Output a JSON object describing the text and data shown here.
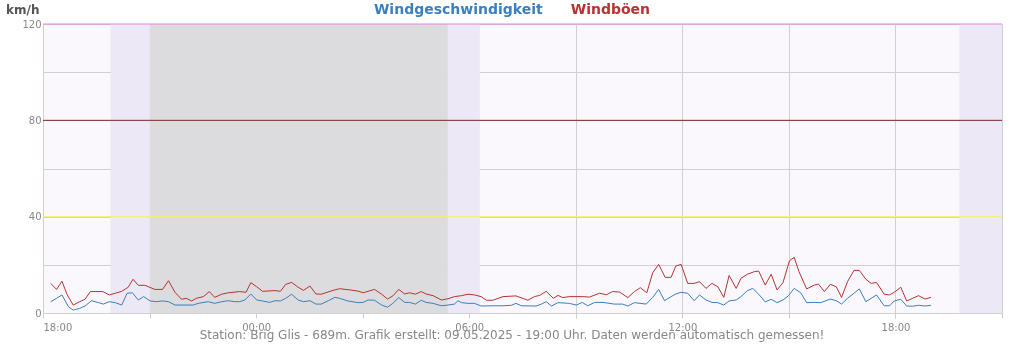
{
  "chart_data": {
    "type": "line",
    "ylabel": "km/h",
    "xlim": [
      "2025-05-08T18:00",
      "2025-05-09T21:00"
    ],
    "ylim": [
      0,
      120
    ],
    "xticks": [
      {
        "value": "2025-05-08T18:00",
        "label": "18:00"
      },
      {
        "value": "2025-05-08T21:00",
        "label": null
      },
      {
        "value": "2025-05-09T00:00",
        "label": "00:00"
      },
      {
        "value": "2025-05-09T03:00",
        "label": null
      },
      {
        "value": "2025-05-09T06:00",
        "label": "06:00"
      },
      {
        "value": "2025-05-09T09:00",
        "label": null
      },
      {
        "value": "2025-05-09T12:00",
        "label": "12:00"
      },
      {
        "value": "2025-05-09T15:00",
        "label": null
      },
      {
        "value": "2025-05-09T18:00",
        "label": "18:00"
      },
      {
        "value": "2025-05-09T21:00",
        "label": null
      }
    ],
    "yticks": [
      0,
      {
        "value": 20,
        "label": null
      },
      40,
      {
        "value": 60,
        "label": null
      },
      80,
      {
        "value": 100,
        "label": null
      },
      120
    ],
    "grid": true,
    "legend": "top",
    "line_style": "solid",
    "annotations": [
      "Station: Brig Glis - 689m. Grafik erstellt: 09.05.2025 - 19:00 Uhr. Daten werden automatisch gemessen!"
    ],
    "bands": [
      {
        "axis": "x",
        "from": "2025-05-08T19:54",
        "to": "2025-05-08T21:00",
        "color": "#ece8f6"
      },
      {
        "axis": "x",
        "from": "2025-05-08T21:00",
        "to": "2025-05-09T05:24",
        "color": "#dcdcdf"
      },
      {
        "axis": "x",
        "from": "2025-05-09T05:24",
        "to": "2025-05-09T06:18",
        "color": "#ece8f6"
      },
      {
        "axis": "x",
        "from": "2025-05-09T19:48",
        "to": "2025-05-09T21:00",
        "color": "#ece8f6"
      }
    ],
    "ref_lines": [
      {
        "axis": "y",
        "value": 120,
        "color": "#ee7fe8"
      },
      {
        "axis": "y",
        "value": 80,
        "color": "#7a2a20"
      },
      {
        "axis": "y",
        "value": 40,
        "color": "#f4f06a"
      }
    ],
    "series": [
      {
        "name": "Windgeschwindigkeit",
        "color": "#3a7fbf",
        "x": [
          "2025-05-08T18:13",
          "2025-05-08T18:23",
          "2025-05-08T18:32",
          "2025-05-08T18:43",
          "2025-05-08T18:51",
          "2025-05-08T19:02",
          "2025-05-08T19:11",
          "2025-05-08T19:22",
          "2025-05-08T19:34",
          "2025-05-08T19:42",
          "2025-05-08T19:52",
          "2025-05-08T20:02",
          "2025-05-08T20:13",
          "2025-05-08T20:22",
          "2025-05-08T20:31",
          "2025-05-08T20:41",
          "2025-05-08T20:50",
          "2025-05-08T21:01",
          "2025-05-08T21:12",
          "2025-05-08T21:22",
          "2025-05-08T21:32",
          "2025-05-08T21:43",
          "2025-05-08T22:14",
          "2025-05-08T22:22",
          "2025-05-08T22:39",
          "2025-05-08T22:50",
          "2025-05-08T23:02",
          "2025-05-08T23:13",
          "2025-05-08T23:24",
          "2025-05-08T23:32",
          "2025-05-08T23:41",
          "2025-05-08T23:51",
          "2025-05-09T00:01",
          "2025-05-09T00:11",
          "2025-05-09T00:23",
          "2025-05-09T00:32",
          "2025-05-09T00:41",
          "2025-05-09T00:50",
          "2025-05-09T01:00",
          "2025-05-09T01:11",
          "2025-05-09T01:20",
          "2025-05-09T01:31",
          "2025-05-09T01:41",
          "2025-05-09T01:50",
          "2025-05-09T02:02",
          "2025-05-09T02:13",
          "2025-05-09T02:21",
          "2025-05-09T02:35",
          "2025-05-09T02:52",
          "2025-05-09T03:01",
          "2025-05-09T03:09",
          "2025-05-09T03:20",
          "2025-05-09T03:32",
          "2025-05-09T03:42",
          "2025-05-09T03:51",
          "2025-05-09T04:01",
          "2025-05-09T04:11",
          "2025-05-09T04:19",
          "2025-05-09T04:29",
          "2025-05-09T04:39",
          "2025-05-09T04:47",
          "2025-05-09T04:59",
          "2025-05-09T05:13",
          "2025-05-09T05:24",
          "2025-05-09T05:35",
          "2025-05-09T05:41",
          "2025-05-09T05:47",
          "2025-05-09T05:58",
          "2025-05-09T06:09",
          "2025-05-09T06:20",
          "2025-05-09T06:40",
          "2025-05-09T06:57",
          "2025-05-09T07:11",
          "2025-05-09T07:19",
          "2025-05-09T07:28",
          "2025-05-09T07:53",
          "2025-05-09T08:02",
          "2025-05-09T08:10",
          "2025-05-09T08:19",
          "2025-05-09T08:30",
          "2025-05-09T08:49",
          "2025-05-09T09:01",
          "2025-05-09T09:11",
          "2025-05-09T09:20",
          "2025-05-09T09:32",
          "2025-05-09T09:46",
          "2025-05-09T10:05",
          "2025-05-09T10:19",
          "2025-05-09T10:28",
          "2025-05-09T10:39",
          "2025-05-09T10:59",
          "2025-05-09T11:10",
          "2025-05-09T11:20",
          "2025-05-09T11:30",
          "2025-05-09T11:41",
          "2025-05-09T11:49",
          "2025-05-09T11:58",
          "2025-05-09T12:09",
          "2025-05-09T12:20",
          "2025-05-09T12:29",
          "2025-05-09T12:40",
          "2025-05-09T12:50",
          "2025-05-09T13:00",
          "2025-05-09T13:10",
          "2025-05-09T13:19",
          "2025-05-09T13:31",
          "2025-05-09T13:39",
          "2025-05-09T13:50",
          "2025-05-09T13:59",
          "2025-05-09T14:09",
          "2025-05-09T14:20",
          "2025-05-09T14:30",
          "2025-05-09T14:40",
          "2025-05-09T14:50",
          "2025-05-09T14:59",
          "2025-05-09T15:09",
          "2025-05-09T15:20",
          "2025-05-09T15:30",
          "2025-05-09T15:43",
          "2025-05-09T15:54",
          "2025-05-09T16:10",
          "2025-05-09T16:20",
          "2025-05-09T16:29",
          "2025-05-09T16:39",
          "2025-05-09T16:50",
          "2025-05-09T16:59",
          "2025-05-09T17:10",
          "2025-05-09T17:28",
          "2025-05-09T17:41",
          "2025-05-09T17:50",
          "2025-05-09T17:58",
          "2025-05-09T18:09",
          "2025-05-09T18:19",
          "2025-05-09T18:29",
          "2025-05-09T18:39",
          "2025-05-09T18:50",
          "2025-05-09T19:00"
        ],
        "values": [
          4.7,
          6.1,
          7.5,
          2.6,
          1.2,
          1.9,
          2.9,
          5.1,
          4.3,
          3.7,
          4.7,
          4.3,
          3.3,
          8.2,
          8.4,
          5.4,
          6.8,
          5.0,
          4.7,
          5.0,
          4.7,
          3.3,
          3.3,
          4.0,
          4.7,
          4.0,
          4.7,
          5.1,
          4.7,
          4.7,
          5.4,
          7.9,
          5.4,
          5.0,
          4.4,
          5.1,
          5.0,
          6.1,
          7.8,
          5.4,
          4.7,
          5.1,
          3.7,
          3.7,
          5.1,
          6.5,
          6.1,
          5.0,
          4.3,
          4.4,
          5.4,
          5.3,
          3.3,
          2.4,
          4.0,
          6.4,
          4.4,
          4.4,
          3.7,
          5.3,
          4.4,
          4.0,
          3.0,
          3.3,
          3.7,
          5.1,
          4.3,
          4.0,
          4.0,
          2.9,
          3.0,
          3.0,
          3.2,
          4.0,
          3.0,
          2.9,
          3.7,
          4.7,
          2.9,
          4.3,
          4.0,
          3.3,
          4.4,
          3.0,
          4.4,
          4.4,
          3.7,
          3.7,
          2.9,
          4.3,
          3.7,
          6.5,
          9.8,
          5.1,
          6.8,
          7.9,
          8.6,
          8.2,
          5.1,
          7.5,
          5.4,
          4.4,
          4.3,
          3.3,
          5.0,
          5.4,
          6.8,
          9.3,
          10.2,
          7.8,
          4.6,
          5.7,
          4.3,
          5.4,
          7.1,
          10.2,
          8.4,
          4.3,
          4.4,
          4.3,
          5.8,
          5.1,
          3.7,
          6.1,
          8.2,
          10.0,
          4.7,
          7.5,
          3.0,
          3.0,
          5.0,
          5.7,
          2.9,
          2.8,
          3.2,
          2.9,
          3.2
        ]
      },
      {
        "name": "Windböen",
        "color": "#b83232",
        "x": [
          "2025-05-08T18:13",
          "2025-05-08T18:23",
          "2025-05-08T18:32",
          "2025-05-08T18:41",
          "2025-05-08T18:51",
          "2025-05-08T19:02",
          "2025-05-08T19:11",
          "2025-05-08T19:20",
          "2025-05-08T19:41",
          "2025-05-08T19:52",
          "2025-05-08T20:02",
          "2025-05-08T20:13",
          "2025-05-08T20:24",
          "2025-05-08T20:32",
          "2025-05-08T20:41",
          "2025-05-08T20:52",
          "2025-05-08T21:09",
          "2025-05-08T21:22",
          "2025-05-08T21:32",
          "2025-05-08T21:43",
          "2025-05-08T21:54",
          "2025-05-08T22:02",
          "2025-05-08T22:11",
          "2025-05-08T22:19",
          "2025-05-08T22:31",
          "2025-05-08T22:41",
          "2025-05-08T22:50",
          "2025-05-08T23:02",
          "2025-05-08T23:13",
          "2025-05-08T23:32",
          "2025-05-08T23:43",
          "2025-05-08T23:51",
          "2025-05-09T00:01",
          "2025-05-09T00:11",
          "2025-05-09T00:32",
          "2025-05-09T00:41",
          "2025-05-09T00:50",
          "2025-05-09T01:00",
          "2025-05-09T01:11",
          "2025-05-09T01:20",
          "2025-05-09T01:31",
          "2025-05-09T01:41",
          "2025-05-09T01:50",
          "2025-05-09T02:10",
          "2025-05-09T02:21",
          "2025-05-09T02:38",
          "2025-05-09T02:52",
          "2025-05-09T03:01",
          "2025-05-09T03:09",
          "2025-05-09T03:20",
          "2025-05-09T03:32",
          "2025-05-09T03:42",
          "2025-05-09T03:51",
          "2025-05-09T04:01",
          "2025-05-09T04:11",
          "2025-05-09T04:19",
          "2025-05-09T04:29",
          "2025-05-09T04:39",
          "2025-05-09T04:47",
          "2025-05-09T04:59",
          "2025-05-09T05:13",
          "2025-05-09T05:24",
          "2025-05-09T05:35",
          "2025-05-09T05:47",
          "2025-05-09T05:58",
          "2025-05-09T06:09",
          "2025-05-09T06:20",
          "2025-05-09T06:29",
          "2025-05-09T06:40",
          "2025-05-09T06:57",
          "2025-05-09T07:19",
          "2025-05-09T07:39",
          "2025-05-09T07:50",
          "2025-05-09T07:59",
          "2025-05-09T08:10",
          "2025-05-09T08:22",
          "2025-05-09T08:30",
          "2025-05-09T08:38",
          "2025-05-09T08:49",
          "2025-05-09T09:12",
          "2025-05-09T09:23",
          "2025-05-09T09:40",
          "2025-05-09T09:52",
          "2025-05-09T10:02",
          "2025-05-09T10:14",
          "2025-05-09T10:28",
          "2025-05-09T10:39",
          "2025-05-09T10:49",
          "2025-05-09T11:00",
          "2025-05-09T11:10",
          "2025-05-09T11:20",
          "2025-05-09T11:31",
          "2025-05-09T11:41",
          "2025-05-09T11:49",
          "2025-05-09T11:58",
          "2025-05-09T12:09",
          "2025-05-09T12:20",
          "2025-05-09T12:29",
          "2025-05-09T12:40",
          "2025-05-09T12:50",
          "2025-05-09T13:00",
          "2025-05-09T13:10",
          "2025-05-09T13:19",
          "2025-05-09T13:31",
          "2025-05-09T13:39",
          "2025-05-09T13:50",
          "2025-05-09T14:02",
          "2025-05-09T14:09",
          "2025-05-09T14:20",
          "2025-05-09T14:30",
          "2025-05-09T14:40",
          "2025-05-09T14:50",
          "2025-05-09T15:01",
          "2025-05-09T15:09",
          "2025-05-09T15:17",
          "2025-05-09T15:30",
          "2025-05-09T15:43",
          "2025-05-09T15:50",
          "2025-05-09T16:00",
          "2025-05-09T16:10",
          "2025-05-09T16:20",
          "2025-05-09T16:29",
          "2025-05-09T16:39",
          "2025-05-09T16:50",
          "2025-05-09T16:59",
          "2025-05-09T17:10",
          "2025-05-09T17:19",
          "2025-05-09T17:28",
          "2025-05-09T17:41",
          "2025-05-09T17:50",
          "2025-05-09T17:58",
          "2025-05-09T18:09",
          "2025-05-09T18:19",
          "2025-05-09T18:29",
          "2025-05-09T18:39",
          "2025-05-09T18:50",
          "2025-05-09T19:00"
        ],
        "values": [
          12.3,
          9.8,
          13.2,
          7.5,
          3.3,
          4.7,
          5.7,
          8.9,
          8.9,
          7.5,
          8.2,
          9.0,
          10.7,
          14.0,
          11.5,
          11.5,
          9.8,
          9.8,
          13.4,
          8.6,
          5.7,
          6.1,
          5.0,
          6.1,
          6.8,
          8.9,
          6.5,
          7.8,
          8.4,
          8.9,
          8.6,
          12.6,
          10.9,
          9.0,
          9.3,
          9.0,
          11.9,
          12.7,
          10.7,
          9.4,
          11.2,
          7.9,
          7.8,
          9.4,
          10.1,
          9.6,
          9.1,
          8.4,
          9.0,
          9.8,
          7.8,
          5.8,
          7.1,
          9.8,
          7.9,
          8.4,
          7.8,
          8.9,
          7.9,
          7.2,
          5.4,
          5.9,
          6.8,
          7.2,
          7.8,
          7.5,
          6.8,
          5.3,
          5.3,
          6.8,
          7.1,
          5.3,
          6.8,
          7.3,
          9.0,
          6.1,
          7.3,
          6.4,
          6.8,
          6.8,
          6.6,
          8.2,
          7.6,
          8.9,
          8.7,
          6.4,
          8.9,
          10.5,
          8.4,
          16.7,
          20.2,
          14.8,
          14.8,
          19.5,
          20.2,
          12.3,
          12.3,
          13.0,
          10.2,
          12.3,
          10.9,
          6.5,
          15.6,
          10.2,
          14.4,
          16.1,
          17.2,
          17.4,
          11.6,
          16.1,
          9.6,
          12.6,
          21.7,
          23.1,
          17.2,
          10.0,
          11.6,
          12.0,
          8.9,
          11.9,
          10.9,
          6.5,
          13.0,
          17.7,
          17.7,
          14.0,
          12.3,
          12.7,
          7.8,
          7.5,
          8.6,
          10.7,
          5.0,
          6.1,
          7.2,
          5.8,
          6.5
        ]
      }
    ]
  }
}
